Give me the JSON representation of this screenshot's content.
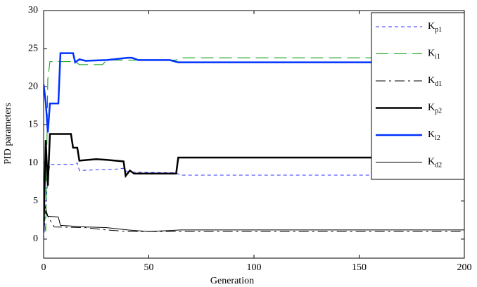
{
  "chart_data": {
    "type": "line",
    "xlabel": "Generation",
    "ylabel": "PID parameters",
    "xlim": [
      0,
      200
    ],
    "xticks": [
      0,
      50,
      100,
      150,
      200
    ],
    "ylim": [
      -2.5,
      30
    ],
    "yticks": [
      0,
      5,
      10,
      15,
      20,
      25,
      30
    ],
    "grid": false,
    "legend": "upper right",
    "series": [
      {
        "name": "Kp1",
        "color": "#3333ff",
        "linestyle": "--",
        "linewidth": 1,
        "x": [
          0,
          2,
          3,
          14,
          16,
          17,
          35,
          38,
          40,
          63,
          65,
          200
        ],
        "values": [
          0,
          8,
          9.8,
          9.8,
          10.0,
          9.0,
          9.2,
          9.3,
          8.8,
          8.7,
          8.4,
          8.4
        ]
      },
      {
        "name": "Ki1",
        "color": "#009900",
        "linestyle": "long-dash",
        "linewidth": 1,
        "x": [
          0,
          1,
          2,
          3,
          15,
          17,
          28,
          30,
          63,
          65,
          200
        ],
        "values": [
          4,
          1,
          21,
          23.3,
          23.3,
          22.9,
          22.9,
          23.5,
          23.5,
          23.8,
          23.8
        ]
      },
      {
        "name": "Kd1",
        "color": "#000000",
        "linestyle": "-.",
        "linewidth": 1,
        "x": [
          0,
          2,
          5,
          20,
          30,
          40,
          200
        ],
        "values": [
          4,
          3,
          1.6,
          1.5,
          1.2,
          1.0,
          1.0
        ]
      },
      {
        "name": "Kp2",
        "color": "#000000",
        "linestyle": "-",
        "linewidth": 2.5,
        "x": [
          0,
          1,
          2,
          3,
          13,
          14,
          16,
          17,
          25,
          30,
          38,
          39,
          41,
          43,
          63,
          64,
          200
        ],
        "values": [
          1,
          13,
          7,
          13.8,
          13.8,
          12,
          12,
          10.3,
          10.5,
          10.4,
          10.2,
          8.3,
          9,
          8.6,
          8.6,
          10.7,
          10.7
        ]
      },
      {
        "name": "Ki2",
        "color": "#0033ff",
        "linestyle": "-",
        "linewidth": 2.5,
        "x": [
          0,
          1,
          2,
          3,
          7,
          8,
          14,
          15,
          17,
          20,
          30,
          40,
          42,
          45,
          60,
          64,
          200
        ],
        "values": [
          20.3,
          18,
          14,
          17.8,
          17.8,
          24.4,
          24.4,
          23.2,
          23.6,
          23.4,
          23.5,
          23.8,
          23.8,
          23.5,
          23.5,
          23.2,
          23.2
        ]
      },
      {
        "name": "Kd2",
        "color": "#000000",
        "linestyle": "-",
        "linewidth": 1,
        "x": [
          0,
          2,
          7,
          8,
          20,
          30,
          40,
          50,
          65,
          200
        ],
        "values": [
          5,
          3,
          2.9,
          1.8,
          1.6,
          1.5,
          1.2,
          1.0,
          1.2,
          1.2
        ]
      }
    ]
  }
}
